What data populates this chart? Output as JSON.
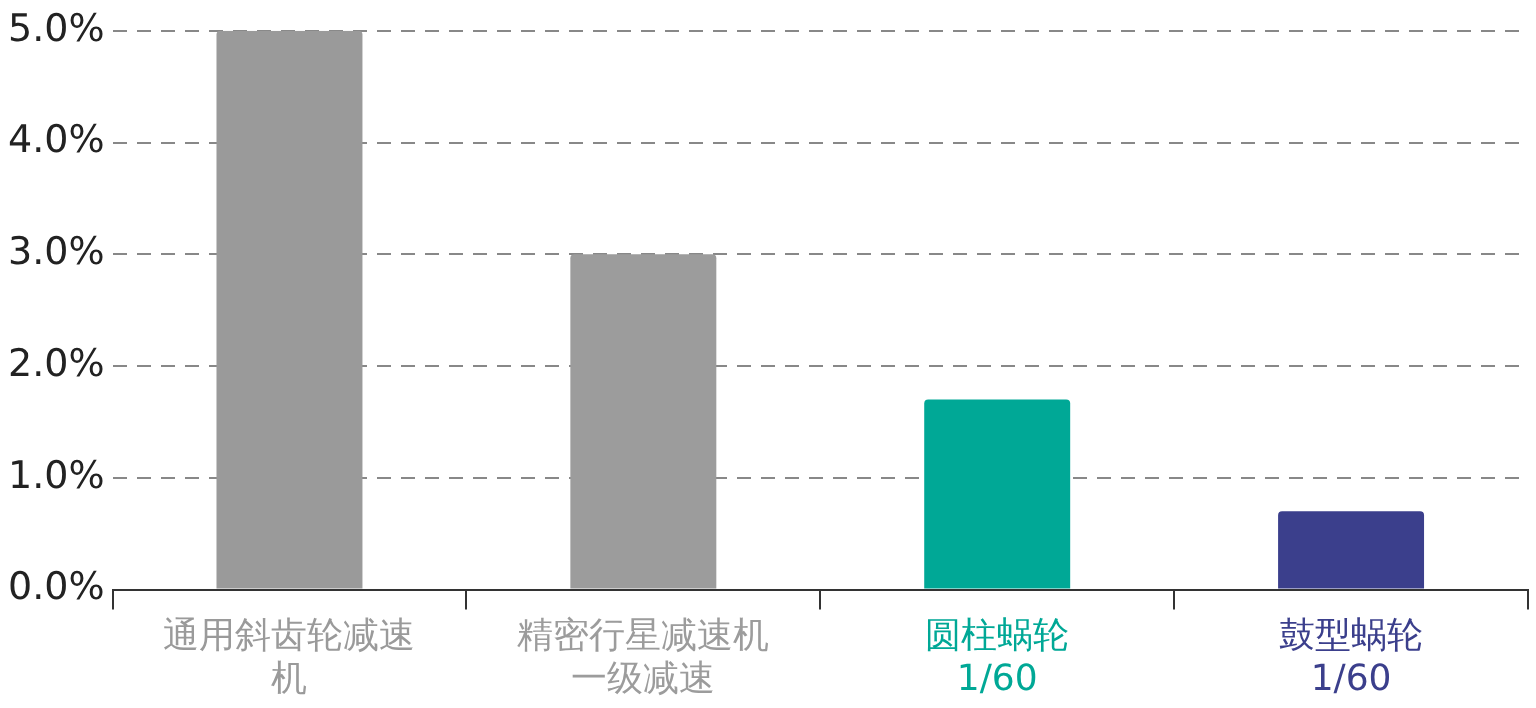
{
  "chart_data": {
    "type": "bar",
    "categories": [
      "通用斜齿轮减速机",
      "精密行星减速机一级减速",
      "圆柱蜗轮\n1/60",
      "鼓型蜗轮\n1/60"
    ],
    "values": [
      5,
      3,
      1.7,
      0.7
    ],
    "colors": [
      "#9a9a9a",
      "#9c9c9c",
      "#00a896",
      "#3b3f8c"
    ],
    "ylim": [
      0,
      5
    ],
    "yticks": [
      {
        "value": 0,
        "label": "0.0%"
      },
      {
        "value": 1,
        "label": "1.0%"
      },
      {
        "value": 2,
        "label": "2.0%"
      },
      {
        "value": 3,
        "label": "3.0%"
      },
      {
        "value": 4,
        "label": "4.0%"
      },
      {
        "value": 5,
        "label": "5.0%"
      }
    ],
    "grid": "y"
  }
}
